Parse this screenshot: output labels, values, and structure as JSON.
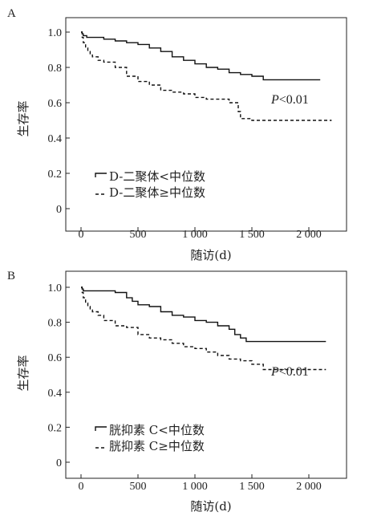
{
  "chart_data": [
    {
      "panel_label": "A",
      "type": "line",
      "xlabel": "随访(d)",
      "ylabel": "生存率",
      "xlim": [
        0,
        2200
      ],
      "ylim": [
        0,
        1.05
      ],
      "xticks": [
        0,
        500,
        1000,
        1500,
        2000
      ],
      "xtick_labels": [
        "0",
        "500",
        "1 000",
        "1 500",
        "2 000"
      ],
      "yticks": [
        0,
        0.2,
        0.4,
        0.6,
        0.8,
        1.0
      ],
      "ytick_labels": [
        "0",
        "0.2",
        "0.4",
        "0.6",
        "0.8",
        "1.0"
      ],
      "annotation": "P<0.01",
      "legend_position": "bottom-left",
      "series": [
        {
          "name": "D-二聚体<中位数",
          "style": "solid",
          "x": [
            0,
            10,
            20,
            50,
            100,
            200,
            300,
            400,
            500,
            600,
            700,
            800,
            900,
            1000,
            1100,
            1200,
            1300,
            1400,
            1500,
            1600,
            2100
          ],
          "y": [
            1.0,
            0.99,
            0.98,
            0.97,
            0.97,
            0.96,
            0.95,
            0.94,
            0.93,
            0.91,
            0.89,
            0.86,
            0.84,
            0.82,
            0.8,
            0.79,
            0.77,
            0.76,
            0.75,
            0.73,
            0.73
          ]
        },
        {
          "name": "D-二聚体≥中位数",
          "style": "dashed",
          "x": [
            0,
            10,
            20,
            40,
            60,
            80,
            100,
            150,
            200,
            300,
            400,
            500,
            600,
            700,
            800,
            900,
            1000,
            1100,
            1200,
            1300,
            1380,
            1400,
            1500,
            2200
          ],
          "y": [
            1.0,
            0.97,
            0.94,
            0.91,
            0.89,
            0.87,
            0.86,
            0.84,
            0.83,
            0.8,
            0.75,
            0.72,
            0.7,
            0.67,
            0.66,
            0.65,
            0.63,
            0.62,
            0.62,
            0.6,
            0.55,
            0.51,
            0.5,
            0.5
          ]
        }
      ]
    },
    {
      "panel_label": "B",
      "type": "line",
      "xlabel": "随访(d)",
      "ylabel": "生存率",
      "xlim": [
        0,
        2200
      ],
      "ylim": [
        0,
        1.05
      ],
      "xticks": [
        0,
        500,
        1000,
        1500,
        2000
      ],
      "xtick_labels": [
        "0",
        "500",
        "1 000",
        "1 500",
        "2 000"
      ],
      "yticks": [
        0,
        0.2,
        0.4,
        0.6,
        0.8,
        1.0
      ],
      "ytick_labels": [
        "0",
        "0.2",
        "0.4",
        "0.6",
        "0.8",
        "1.0"
      ],
      "annotation": "P<0.01",
      "legend_position": "bottom-left",
      "series": [
        {
          "name": "胱抑素 C<中位数",
          "style": "solid",
          "x": [
            0,
            10,
            20,
            50,
            100,
            200,
            300,
            400,
            450,
            500,
            600,
            700,
            800,
            900,
            1000,
            1100,
            1200,
            1300,
            1350,
            1400,
            1450,
            2150
          ],
          "y": [
            1.0,
            0.99,
            0.98,
            0.98,
            0.98,
            0.98,
            0.97,
            0.94,
            0.92,
            0.9,
            0.89,
            0.86,
            0.84,
            0.83,
            0.81,
            0.8,
            0.78,
            0.76,
            0.73,
            0.71,
            0.69,
            0.69
          ]
        },
        {
          "name": "胱抑素 C≥中位数",
          "style": "dashed",
          "x": [
            0,
            10,
            20,
            40,
            60,
            80,
            100,
            150,
            200,
            300,
            400,
            500,
            600,
            700,
            800,
            900,
            1000,
            1100,
            1200,
            1300,
            1400,
            1500,
            1600,
            2150
          ],
          "y": [
            1.0,
            0.97,
            0.94,
            0.91,
            0.89,
            0.87,
            0.86,
            0.84,
            0.81,
            0.78,
            0.77,
            0.73,
            0.71,
            0.7,
            0.68,
            0.66,
            0.65,
            0.63,
            0.61,
            0.59,
            0.58,
            0.56,
            0.53,
            0.53
          ]
        }
      ]
    }
  ]
}
